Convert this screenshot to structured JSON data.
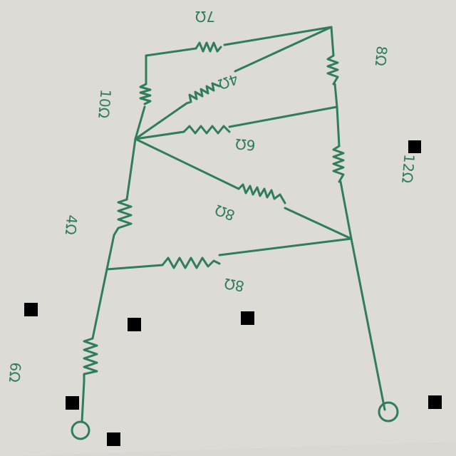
{
  "diagram": {
    "colors": {
      "ink": "#2f7d5b",
      "paper": "#d9d8d2"
    },
    "labels": {
      "r_top": "7Ω",
      "r_diag_upper": "4Ω",
      "r_right_upper": "8Ω",
      "r_left_upper": "10Ω",
      "r_mid_horizontal": "6Ω",
      "r_right_lower": "12Ω",
      "r_diag_lower": "8Ω",
      "r_left_mid": "4Ω",
      "r_bottom_horizontal": "8Ω",
      "r_left_lower": "6Ω"
    }
  }
}
